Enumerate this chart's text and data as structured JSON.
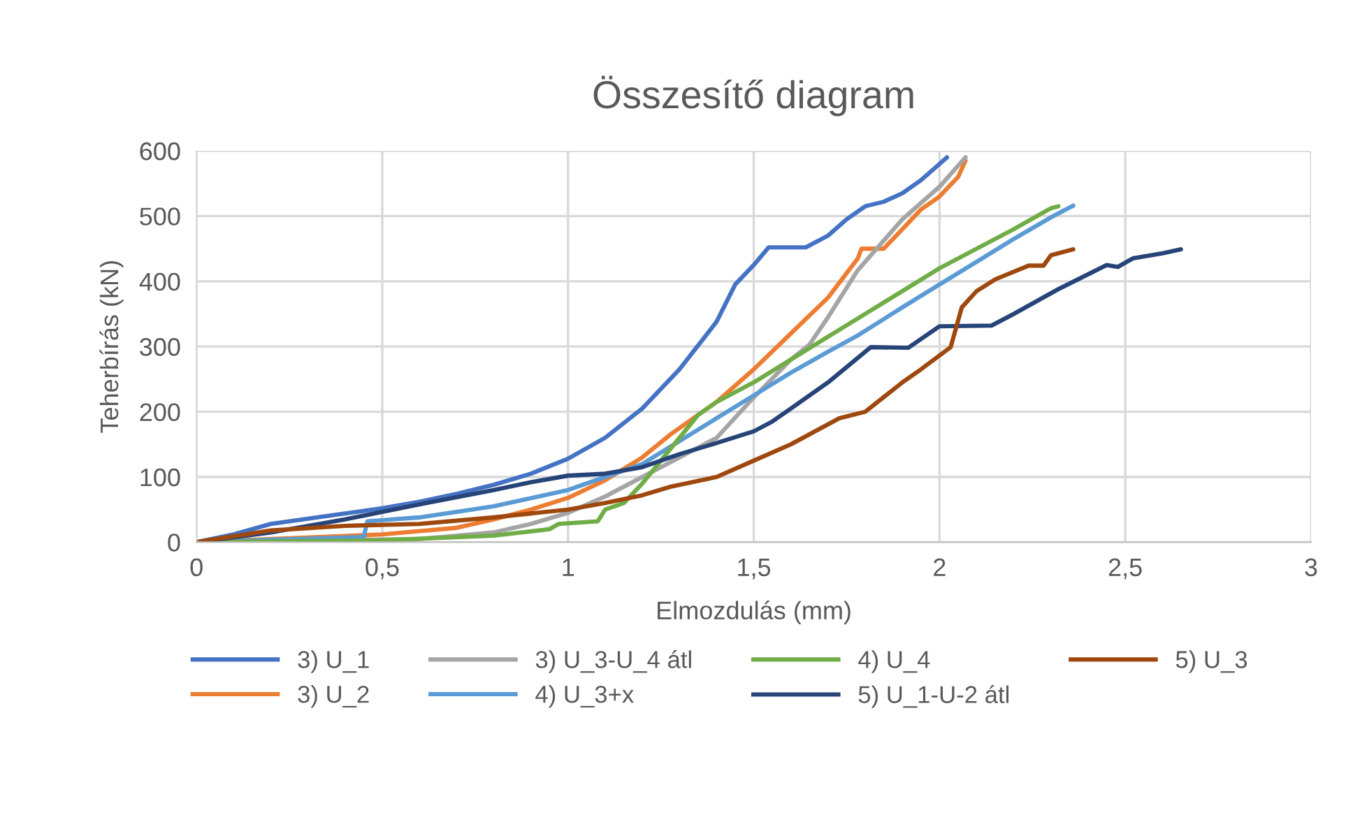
{
  "chart_data": {
    "type": "line",
    "title": "Összesítő diagram",
    "xlabel": "Elmozdulás (mm)",
    "ylabel": "Teherbírás (kN)",
    "xlim": [
      0,
      3
    ],
    "ylim": [
      0,
      600
    ],
    "xticks": [
      0,
      {
        "value": 0.5,
        "label": "0,5"
      },
      1,
      {
        "value": 1.5,
        "label": "1,5"
      },
      2,
      {
        "value": 2.5,
        "label": "2,5"
      },
      3
    ],
    "yticks": [
      0,
      100,
      200,
      300,
      400,
      500,
      600
    ],
    "grid": true,
    "legend": "bottom",
    "marker": "none",
    "line_style": "solid",
    "series": [
      {
        "name": "3) U_1",
        "color": "#4472c4",
        "x": [
          0,
          0.1,
          0.2,
          0.3,
          0.4,
          0.5,
          0.6,
          0.7,
          0.8,
          0.9,
          1.0,
          1.1,
          1.2,
          1.3,
          1.4,
          1.45,
          1.5,
          1.54,
          1.64,
          1.7,
          1.75,
          1.8,
          1.85,
          1.9,
          1.95,
          2.0,
          2.02
        ],
        "values": [
          0,
          12,
          28,
          36,
          44,
          52,
          62,
          74,
          88,
          105,
          128,
          160,
          205,
          265,
          338,
          395,
          425,
          452,
          452,
          470,
          495,
          515,
          522,
          535,
          555,
          580,
          590
        ]
      },
      {
        "name": "3) U_2",
        "color": "#ed7d31",
        "x": [
          0,
          0.5,
          0.7,
          0.8,
          0.9,
          1.0,
          1.1,
          1.2,
          1.28,
          1.4,
          1.5,
          1.6,
          1.7,
          1.78,
          1.79,
          1.85,
          1.9,
          1.95,
          2.0,
          2.05,
          2.07
        ],
        "values": [
          0,
          12,
          22,
          35,
          50,
          68,
          95,
          130,
          167,
          215,
          265,
          320,
          375,
          435,
          450,
          450,
          480,
          510,
          530,
          560,
          585
        ]
      },
      {
        "name": "3) U_3-U_4 átl",
        "color": "#a5a5a5",
        "x": [
          0,
          0.6,
          0.8,
          0.9,
          1.0,
          1.1,
          1.2,
          1.3,
          1.4,
          1.5,
          1.6,
          1.65,
          1.7,
          1.78,
          1.9,
          2.0,
          2.07
        ],
        "values": [
          0,
          5,
          15,
          28,
          45,
          70,
          100,
          130,
          160,
          222,
          280,
          303,
          345,
          417,
          495,
          545,
          590
        ]
      },
      {
        "name": "4) U_3+x",
        "color": "#5b9bd5",
        "x": [
          0,
          0.45,
          0.46,
          0.6,
          0.8,
          1.0,
          1.1,
          1.2,
          1.3,
          1.4,
          1.5,
          1.6,
          1.7,
          1.78,
          1.9,
          2.0,
          2.1,
          2.2,
          2.3,
          2.36
        ],
        "values": [
          0,
          8,
          32,
          38,
          55,
          80,
          100,
          120,
          155,
          190,
          225,
          260,
          292,
          317,
          360,
          395,
          430,
          465,
          498,
          516
        ]
      },
      {
        "name": "4) U_4",
        "color": "#70ad47",
        "x": [
          0,
          0.5,
          0.8,
          0.95,
          0.975,
          1.08,
          1.1,
          1.15,
          1.2,
          1.25,
          1.3,
          1.35,
          1.4,
          1.5,
          1.6,
          1.7,
          1.8,
          1.9,
          2.0,
          2.1,
          2.2,
          2.3,
          2.32
        ],
        "values": [
          0,
          3,
          10,
          20,
          28,
          32,
          50,
          60,
          90,
          125,
          160,
          195,
          215,
          245,
          280,
          315,
          350,
          385,
          420,
          450,
          480,
          512,
          515
        ]
      },
      {
        "name": "5) U_1-U-2 átl",
        "color": "#264478",
        "x": [
          0,
          0.2,
          0.4,
          0.6,
          0.8,
          0.9,
          1.0,
          1.1,
          1.2,
          1.3,
          1.4,
          1.5,
          1.55,
          1.6,
          1.7,
          1.815,
          1.916,
          2.0,
          2.14,
          2.2,
          2.32,
          2.45,
          2.48,
          2.52,
          2.6,
          2.65
        ],
        "values": [
          0,
          15,
          35,
          58,
          80,
          92,
          102,
          105,
          115,
          135,
          152,
          170,
          185,
          205,
          245,
          299,
          298,
          331,
          332,
          350,
          388,
          425,
          422,
          435,
          443,
          449
        ]
      },
      {
        "name": "5) U_3",
        "color": "#9e480e",
        "x": [
          0,
          0.2,
          0.4,
          0.6,
          0.8,
          1.0,
          1.1,
          1.2,
          1.276,
          1.4,
          1.5,
          1.6,
          1.73,
          1.8,
          1.9,
          1.95,
          2.03,
          2.06,
          2.1,
          2.15,
          2.24,
          2.28,
          2.3,
          2.36
        ],
        "values": [
          0,
          18,
          25,
          28,
          38,
          50,
          60,
          72,
          85,
          100,
          125,
          150,
          190,
          200,
          245,
          265,
          299,
          360,
          385,
          403,
          424,
          424,
          440,
          449
        ]
      }
    ]
  }
}
